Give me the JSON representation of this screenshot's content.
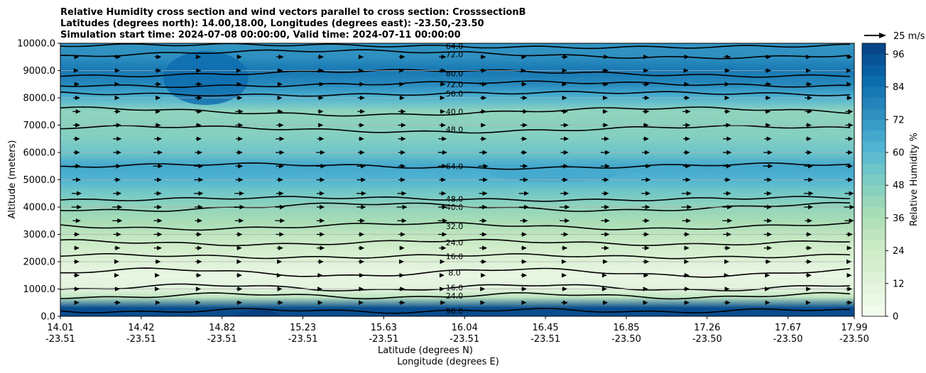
{
  "chart_data": {
    "type": "heatmap",
    "title_lines": [
      "Relative Humidity cross section and wind vectors parallel to cross section: CrosssectionB",
      "Latitudes (degrees north): 14.00,18.00, Longitudes (degrees east): -23.50,-23.50",
      "Simulation start time: 2024-07-08 00:00:00, Valid time: 2024-07-11 00:00:00"
    ],
    "ylabel": "Altitude (meters)",
    "xlabel_lat": "Latitude (degrees N)",
    "xlabel_lon": "Longitude (degrees E)",
    "ylim": [
      0,
      10000
    ],
    "y_ticks": [
      "0.0",
      "1000.0",
      "2000.0",
      "3000.0",
      "4000.0",
      "5000.0",
      "6000.0",
      "7000.0",
      "8000.0",
      "9000.0",
      "10000.0"
    ],
    "x_ticks": [
      {
        "lat": "14.01",
        "lon": "-23.51"
      },
      {
        "lat": "14.42",
        "lon": "-23.51"
      },
      {
        "lat": "14.82",
        "lon": "-23.51"
      },
      {
        "lat": "15.23",
        "lon": "-23.51"
      },
      {
        "lat": "15.63",
        "lon": "-23.51"
      },
      {
        "lat": "16.04",
        "lon": "-23.51"
      },
      {
        "lat": "16.45",
        "lon": "-23.51"
      },
      {
        "lat": "16.85",
        "lon": "-23.50"
      },
      {
        "lat": "17.26",
        "lon": "-23.50"
      },
      {
        "lat": "17.67",
        "lon": "-23.50"
      },
      {
        "lat": "17.99",
        "lon": "-23.50"
      }
    ],
    "colorbar": {
      "label": "Relative Humidity %",
      "range": [
        0,
        100
      ],
      "ticks": [
        "0",
        "12",
        "24",
        "36",
        "48",
        "60",
        "72",
        "84",
        "96"
      ],
      "levels": 25,
      "colormap": "GnBu",
      "colors": [
        "#f7fcf0",
        "#e0f3db",
        "#ccebc5",
        "#a8ddb5",
        "#7bccc4",
        "#4eb3d3",
        "#2b8cbe",
        "#0868ac",
        "#084081"
      ]
    },
    "wind_reference": {
      "label": "25 m/s",
      "speed": 25
    },
    "humidity_profile": [
      {
        "altitude": 0,
        "rh": 96
      },
      {
        "altitude": 300,
        "rh": 96
      },
      {
        "altitude": 700,
        "rh": 30
      },
      {
        "altitude": 1000,
        "rh": 12
      },
      {
        "altitude": 1500,
        "rh": 8
      },
      {
        "altitude": 2000,
        "rh": 14
      },
      {
        "altitude": 2500,
        "rh": 22
      },
      {
        "altitude": 3000,
        "rh": 30
      },
      {
        "altitude": 3500,
        "rh": 38
      },
      {
        "altitude": 4000,
        "rh": 44
      },
      {
        "altitude": 4500,
        "rh": 52
      },
      {
        "altitude": 5000,
        "rh": 62
      },
      {
        "altitude": 5500,
        "rh": 66
      },
      {
        "altitude": 6000,
        "rh": 54
      },
      {
        "altitude": 6500,
        "rh": 48
      },
      {
        "altitude": 7000,
        "rh": 46
      },
      {
        "altitude": 7500,
        "rh": 44
      },
      {
        "altitude": 8000,
        "rh": 62
      },
      {
        "altitude": 8500,
        "rh": 76
      },
      {
        "altitude": 9000,
        "rh": 82
      },
      {
        "altitude": 9500,
        "rh": 74
      },
      {
        "altitude": 10000,
        "rh": 72
      }
    ],
    "contours": [
      {
        "label": "96.0",
        "altitude": 200
      },
      {
        "label": "24.0",
        "altitude": 750
      },
      {
        "label": "16.0",
        "altitude": 1050
      },
      {
        "label": "8.0",
        "altitude": 1600
      },
      {
        "label": "16.0",
        "altitude": 2200
      },
      {
        "label": "24.0",
        "altitude": 2700
      },
      {
        "label": "32.0",
        "altitude": 3300
      },
      {
        "label": "40.0",
        "altitude": 4000
      },
      {
        "label": "48.0",
        "altitude": 4300
      },
      {
        "label": "64.0",
        "altitude": 5500
      },
      {
        "label": "48.0",
        "altitude": 6850
      },
      {
        "label": "40.0",
        "altitude": 7500
      },
      {
        "label": "56.0",
        "altitude": 8150
      },
      {
        "label": "72.0",
        "altitude": 8500
      },
      {
        "label": "80.0",
        "altitude": 8900
      },
      {
        "label": "72.0",
        "altitude": 9600
      },
      {
        "label": "64.0",
        "altitude": 9900
      }
    ],
    "wind_rows": [
      {
        "altitude": 500,
        "speed": 6
      },
      {
        "altitude": 1000,
        "speed": 5
      },
      {
        "altitude": 1500,
        "speed": 5
      },
      {
        "altitude": 2000,
        "speed": 6
      },
      {
        "altitude": 2500,
        "speed": 8
      },
      {
        "altitude": 3000,
        "speed": 9
      },
      {
        "altitude": 3500,
        "speed": 11
      },
      {
        "altitude": 4000,
        "speed": 12
      },
      {
        "altitude": 4500,
        "speed": 11
      },
      {
        "altitude": 5000,
        "speed": 10
      },
      {
        "altitude": 5500,
        "speed": 11
      },
      {
        "altitude": 6000,
        "speed": 10
      },
      {
        "altitude": 6500,
        "speed": 9
      },
      {
        "altitude": 7000,
        "speed": 8
      },
      {
        "altitude": 7500,
        "speed": 8
      },
      {
        "altitude": 8000,
        "speed": 7
      },
      {
        "altitude": 8500,
        "speed": 7
      },
      {
        "altitude": 9000,
        "speed": 6
      },
      {
        "altitude": 9500,
        "speed": 7
      }
    ]
  }
}
